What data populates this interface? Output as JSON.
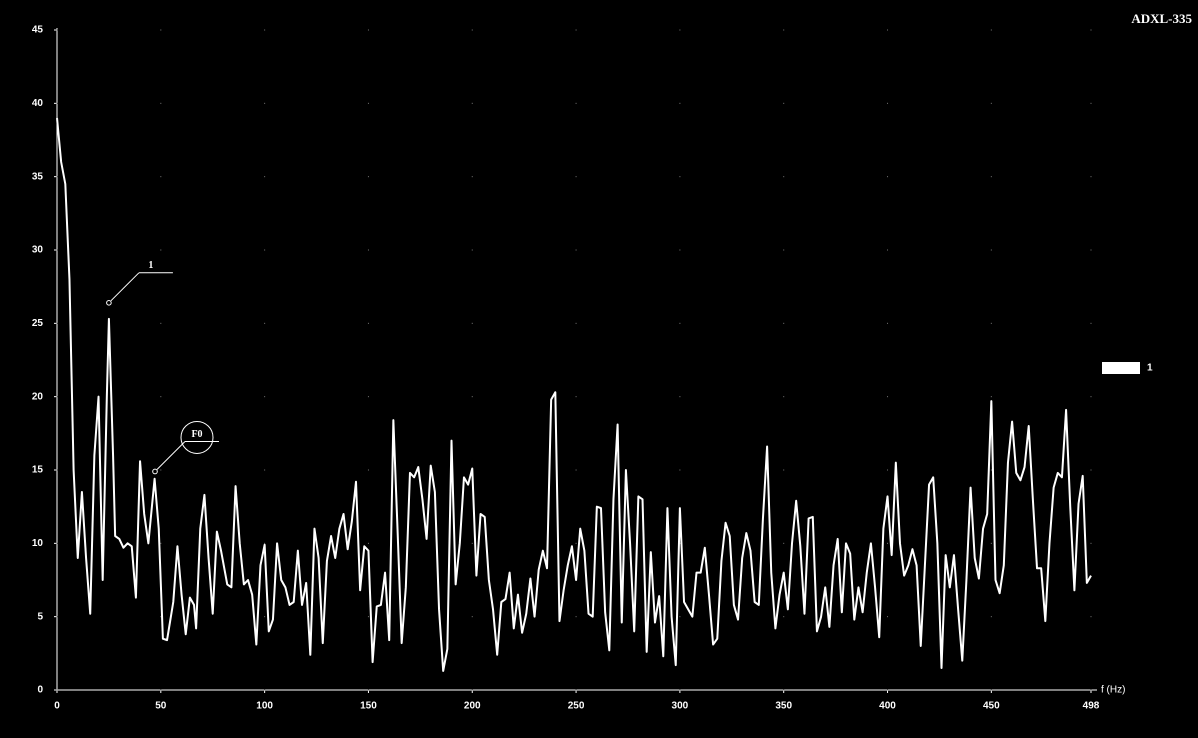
{
  "chart_data": {
    "type": "line",
    "title": "ADXL-335",
    "x_label": "f (Hz)",
    "xlim": [
      0,
      498
    ],
    "ylim": [
      0,
      45
    ],
    "xticks": [
      0,
      50,
      100,
      150,
      200,
      250,
      300,
      350,
      400,
      450,
      498
    ],
    "yticks": [
      0,
      5,
      10,
      15,
      20,
      25,
      30,
      35,
      40,
      45
    ],
    "grid": "dots",
    "legend": "right",
    "x": [
      0,
      2,
      4,
      6,
      8,
      10,
      12,
      14,
      16,
      18,
      20,
      22,
      24,
      25,
      27,
      28,
      30,
      32,
      34,
      36,
      38,
      40,
      42,
      44,
      47,
      49,
      51,
      53,
      56,
      58,
      60,
      62,
      64,
      66,
      67,
      69,
      71,
      73,
      75,
      77,
      79,
      82,
      84,
      86,
      88,
      90,
      92,
      94,
      96,
      98,
      100,
      102,
      104,
      106,
      108,
      110,
      112,
      114,
      116,
      118,
      120,
      122,
      124,
      126,
      128,
      130,
      132,
      134,
      136,
      138,
      140,
      142,
      144,
      146,
      148,
      150,
      152,
      154,
      156,
      158,
      160,
      162,
      164,
      166,
      168,
      170,
      172,
      174,
      176,
      178,
      180,
      182,
      184,
      186,
      188,
      190,
      192,
      194,
      196,
      198,
      200,
      202,
      204,
      206,
      208,
      210,
      212,
      214,
      216,
      218,
      220,
      222,
      224,
      226,
      228,
      230,
      232,
      234,
      236,
      238,
      240,
      242,
      244,
      246,
      248,
      250,
      252,
      254,
      256,
      258,
      260,
      262,
      264,
      266,
      268,
      270,
      272,
      274,
      276,
      278,
      280,
      282,
      284,
      286,
      288,
      290,
      292,
      294,
      296,
      298,
      300,
      302,
      304,
      306,
      308,
      310,
      312,
      314,
      316,
      318,
      320,
      322,
      324,
      326,
      328,
      330,
      332,
      334,
      336,
      338,
      340,
      342,
      344,
      346,
      348,
      350,
      352,
      354,
      356,
      358,
      360,
      362,
      364,
      366,
      368,
      370,
      372,
      374,
      376,
      378,
      380,
      382,
      384,
      386,
      388,
      390,
      392,
      394,
      396,
      398,
      400,
      402,
      404,
      406,
      408,
      410,
      412,
      414,
      416,
      418,
      420,
      422,
      424,
      426,
      428,
      430,
      432,
      434,
      436,
      438,
      440,
      442,
      444,
      446,
      448,
      450,
      452,
      454,
      456,
      458,
      460,
      462,
      464,
      466,
      468,
      470,
      472,
      474,
      476,
      478,
      480,
      482,
      484,
      486,
      488,
      490,
      492,
      494,
      496,
      498
    ],
    "series": [
      {
        "name": "1",
        "color": "#ffffff",
        "values": [
          39,
          36,
          34.5,
          28,
          15,
          9,
          13.5,
          9,
          5.2,
          16,
          20,
          7.5,
          20,
          25.3,
          16,
          10.5,
          10.3,
          9.7,
          10,
          9.8,
          6.3,
          15.6,
          12,
          10,
          14.4,
          11,
          3.5,
          3.4,
          6,
          9.8,
          6.5,
          3.8,
          6.3,
          5.8,
          4.2,
          11,
          13.3,
          9,
          5.2,
          10.8,
          9.5,
          7.2,
          7,
          13.9,
          10,
          7.2,
          7.5,
          6.5,
          3.1,
          8.5,
          9.9,
          4,
          4.8,
          10,
          7.5,
          7,
          5.8,
          6,
          9.5,
          5.8,
          7.3,
          2.4,
          11,
          9,
          3.2,
          8.8,
          10.5,
          9,
          11,
          12,
          9.6,
          11.5,
          14.2,
          6.8,
          9.8,
          9.5,
          1.9,
          5.7,
          5.8,
          8,
          3.4,
          18.4,
          11,
          3.2,
          7,
          14.8,
          14.5,
          15.2,
          13,
          10.3,
          15.3,
          13.5,
          5.5,
          1.3,
          2.8,
          17,
          7.2,
          10,
          14.5,
          14,
          15.1,
          7.8,
          12,
          11.8,
          7.5,
          5.5,
          2.4,
          6,
          6.2,
          8,
          4.2,
          6.5,
          3.9,
          5.2,
          7.6,
          5,
          8.2,
          9.5,
          8.3,
          19.8,
          20.3,
          4.7,
          6.8,
          8.5,
          9.8,
          7.5,
          11,
          9.5,
          5.2,
          5,
          12.5,
          12.4,
          5.3,
          2.7,
          13,
          18.1,
          4.6,
          15,
          10,
          4,
          13.2,
          13,
          2.6,
          9.4,
          4.6,
          6.4,
          2.3,
          12.4,
          5,
          1.7,
          12.4,
          6,
          5.5,
          5,
          8,
          8,
          9.7,
          6.5,
          3.1,
          3.5,
          8.8,
          11.4,
          10.5,
          5.8,
          4.8,
          9,
          10.7,
          9.5,
          6,
          5.8,
          11.7,
          16.6,
          8,
          4.2,
          6.5,
          8,
          5.5,
          10,
          12.9,
          9.8,
          5.2,
          11.7,
          11.8,
          4,
          5,
          7,
          4.3,
          8.5,
          10.3,
          5.3,
          10,
          9.3,
          4.8,
          7,
          5.3,
          8,
          10,
          7,
          3.6,
          11,
          13.2,
          9.2,
          15.5,
          10,
          7.8,
          8.5,
          9.6,
          8.5,
          3,
          8.5,
          14,
          14.5,
          10,
          1.5,
          9.2,
          7,
          9.2,
          5.5,
          2,
          7.5,
          13.8,
          9,
          7.6,
          11,
          12,
          19.7,
          7.5,
          6.6,
          8.5,
          15.5,
          18.3,
          14.8,
          14.3,
          15.2,
          18,
          13,
          8.3,
          8.3,
          4.7,
          10,
          13.8,
          14.8,
          14.5,
          19.1,
          12.5,
          6.8,
          12.7,
          14.6,
          7.3,
          7.8
        ]
      }
    ],
    "annotations": [
      {
        "text": "1",
        "x": 25,
        "y": 26.4
      },
      {
        "text": "F0",
        "x": 47.2,
        "y": 14.9
      }
    ]
  }
}
